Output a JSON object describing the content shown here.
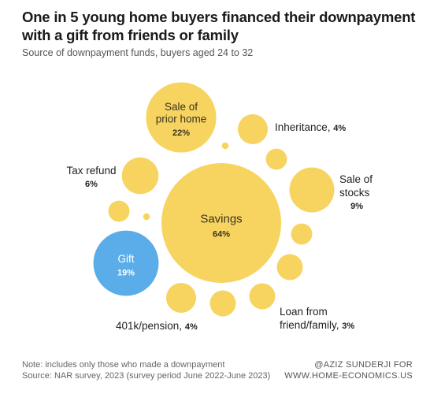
{
  "header": {
    "title_line1": "One in 5 young home buyers financed their downpayment",
    "title_line2": "with a gift from friends or family",
    "subtitle": "Source of downpayment funds, buyers aged 24 to 32"
  },
  "footer": {
    "note_line1": "Note: includes only those who made a downpayment",
    "note_line2": "Source: NAR survey, 2023 (survey period June 2022-June 2023)",
    "credit_line1": "@AZIZ SUNDERJI FOR",
    "credit_line2": "WWW.HOME-ECONOMICS.US"
  },
  "colors": {
    "bubble": "#f7d460",
    "highlight": "#5aade9",
    "text": "#222222",
    "inside_text": "#3a3320",
    "highlight_text": "#ffffff"
  },
  "chart_data": {
    "type": "bubble",
    "title": "One in 5 young home buyers financed their downpayment with a gift from friends or family",
    "subtitle": "Source of downpayment funds, buyers aged 24 to 32",
    "unit": "%",
    "labeled": [
      {
        "name": "Savings",
        "value": 64,
        "value_text": "64%",
        "highlight": false
      },
      {
        "name": "Sale of prior home",
        "value": 22,
        "value_text": "22%",
        "highlight": false
      },
      {
        "name": "Gift",
        "value": 19,
        "value_text": "19%",
        "highlight": true
      },
      {
        "name": "Sale of stocks",
        "value": 9,
        "value_text": "9%",
        "highlight": false
      },
      {
        "name": "Tax refund",
        "value": 6,
        "value_text": "6%",
        "highlight": false
      },
      {
        "name": "Inheritance",
        "value": 4,
        "value_text": "4%",
        "highlight": false
      },
      {
        "name": "401k/pension",
        "value": 4,
        "value_text": "4%",
        "highlight": false
      },
      {
        "name": "Loan from friend/family",
        "value": 3,
        "value_text": "3%",
        "highlight": false
      }
    ],
    "unlabeled_values": [
      3,
      3,
      2,
      2,
      2,
      0.2,
      0.2
    ]
  }
}
